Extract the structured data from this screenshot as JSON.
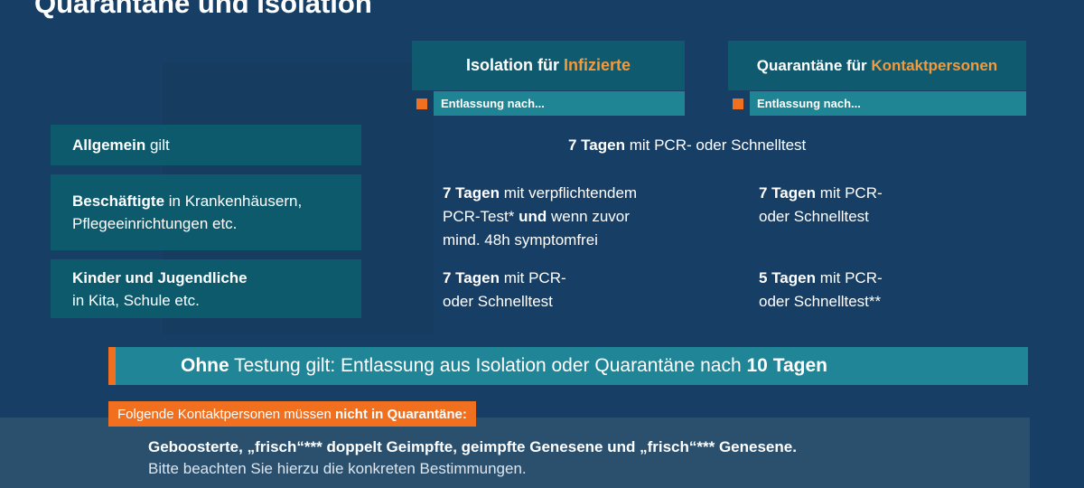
{
  "title": "Quarantäne und Isolation",
  "columns": [
    {
      "prefix": "Isolation für ",
      "highlight": "Infizierte",
      "sub": "Entlassung nach..."
    },
    {
      "prefix": "Quarantäne für ",
      "highlight": "Kontaktpersonen",
      "sub": "Entlassung nach..."
    }
  ],
  "rows": [
    {
      "label_bold": "Allgemein",
      "label_rest": " gilt",
      "combined": {
        "bold": "7 Tagen",
        "rest": " mit PCR- oder Schnelltest"
      }
    },
    {
      "label_bold": "Beschäftigte",
      "label_rest": " in Krankenhäusern,",
      "label_line2": "Pflegeeinrichtungen etc.",
      "isolation": {
        "bold": "7 Tagen",
        "rest1": " mit verpflichtendem",
        "line2a": "PCR-Test* ",
        "line2b": "und",
        "line2c": " wenn zuvor",
        "line3": "mind. 48h symptomfrei"
      },
      "quarantine": {
        "bold": "7 Tagen",
        "rest1": " mit PCR-",
        "line2": "oder Schnelltest"
      }
    },
    {
      "label_bold": "Kinder und Jugendliche",
      "label_line2": "in Kita, Schule etc.",
      "isolation": {
        "bold": "7 Tagen",
        "rest1": " mit PCR-",
        "line2": "oder Schnelltest"
      },
      "quarantine": {
        "bold": "5 Tagen",
        "rest1": " mit PCR-",
        "line2": "oder Schnelltest**"
      }
    }
  ],
  "banner": {
    "bold1": "Ohne",
    "middle": " Testung gilt: Entlassung aus Isolation oder Quarantäne nach ",
    "bold2": "10 Tagen"
  },
  "exempt": {
    "tag_normal": "Folgende Kontaktpersonen müssen ",
    "tag_bold": "nicht in Quarantäne:",
    "line1": "Geboosterte, „frisch“*** doppelt Geimpfte, geimpfte Genesene und „frisch“*** Genesene.",
    "line2": "Bitte beachten Sie hierzu die konkreten Bestimmungen."
  },
  "colors": {
    "background": "#173f65",
    "accent": "#f07020",
    "teal_dark": "#0c5a6c",
    "teal_light": "#1f8595",
    "highlight": "#f39a3c"
  }
}
